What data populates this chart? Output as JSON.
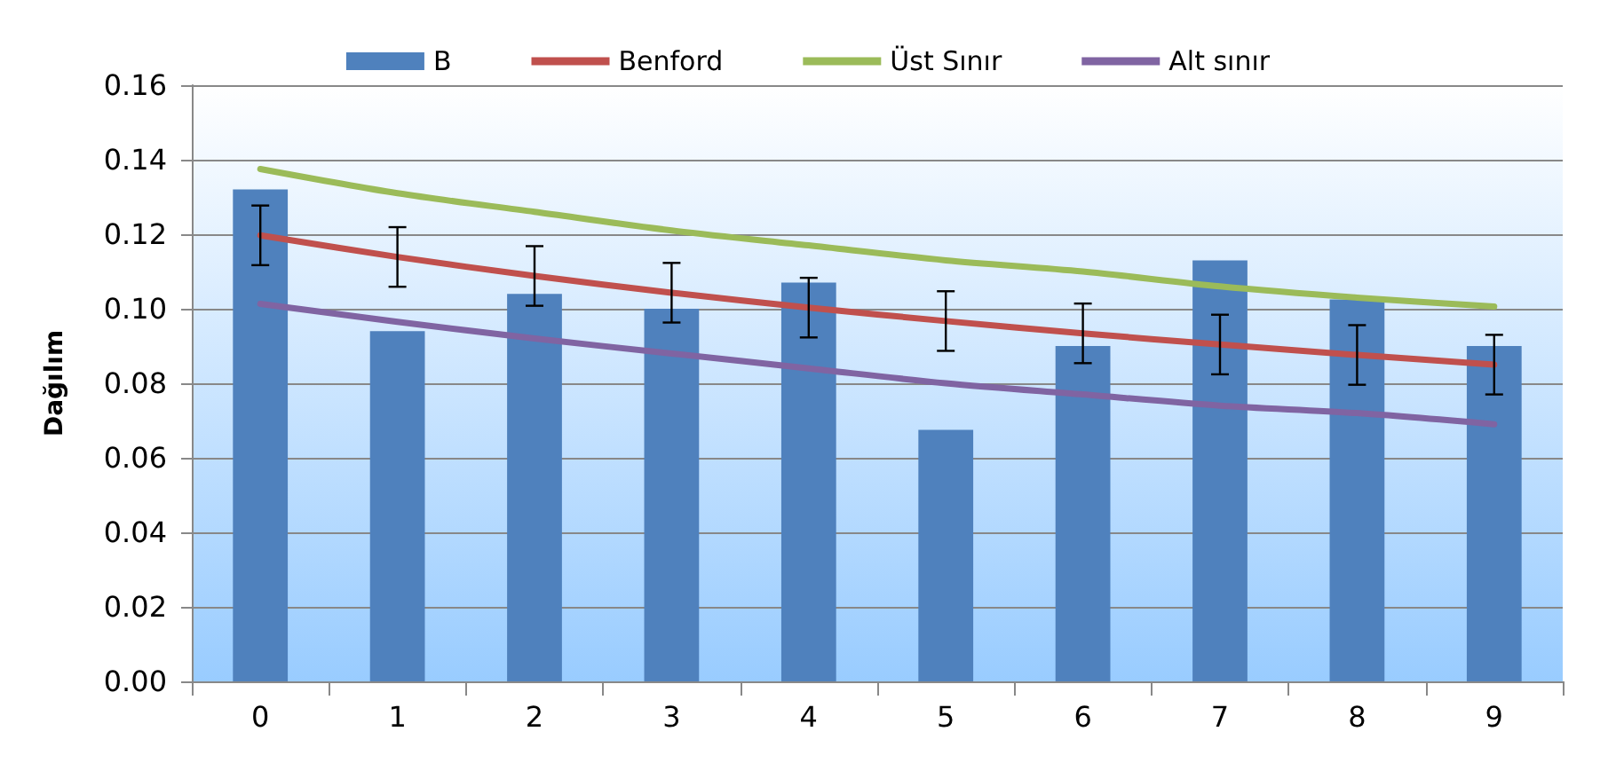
{
  "chart_data": {
    "type": "bar",
    "ylabel": "Dağılım",
    "categories": [
      "0",
      "1",
      "2",
      "3",
      "4",
      "5",
      "6",
      "7",
      "8",
      "9"
    ],
    "series": [
      {
        "name": "B",
        "color": "#4f81bd",
        "values": [
          0.132,
          0.094,
          0.104,
          0.1,
          0.107,
          0.0675,
          0.09,
          0.113,
          0.1025,
          0.09
        ]
      },
      {
        "name": "Benford",
        "type": "line",
        "color": "#c0504d",
        "values": [
          0.1197,
          0.1139,
          0.1088,
          0.1043,
          0.1003,
          0.0967,
          0.0934,
          0.0904,
          0.0876,
          0.085
        ],
        "errors": [
          0.008,
          0.008,
          0.008,
          0.008,
          0.008,
          0.008,
          0.008,
          0.008,
          0.008,
          0.008
        ]
      },
      {
        "name": "Üst Sınır",
        "type": "line",
        "color": "#9bbb59",
        "values": [
          0.1375,
          0.131,
          0.126,
          0.121,
          0.117,
          0.113,
          0.11,
          0.106,
          0.103,
          0.1006
        ]
      },
      {
        "name": "Alt sınır",
        "type": "line",
        "color": "#8064a2",
        "values": [
          0.1013,
          0.0965,
          0.092,
          0.088,
          0.084,
          0.08,
          0.077,
          0.074,
          0.072,
          0.069
        ]
      }
    ],
    "ylim": [
      0,
      0.16
    ],
    "yticks": [
      {
        "value": 0,
        "label": "0.00"
      },
      {
        "value": 0.02,
        "label": "0.02"
      },
      {
        "value": 0.04,
        "label": "0.04"
      },
      {
        "value": 0.06,
        "label": "0.06"
      },
      {
        "value": 0.08,
        "label": "0.08"
      },
      {
        "value": 0.1,
        "label": "0.10"
      },
      {
        "value": 0.12,
        "label": "0.12"
      },
      {
        "value": 0.14,
        "label": "0.14"
      },
      {
        "value": 0.16,
        "label": "0.16"
      }
    ],
    "grid": "y",
    "legend": "top",
    "marker": "none",
    "line_style": "solid"
  }
}
